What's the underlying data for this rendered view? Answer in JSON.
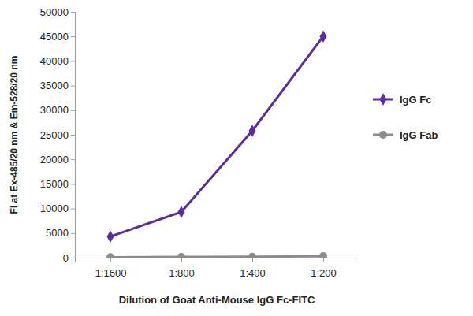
{
  "chart_data": {
    "type": "line",
    "x_label": "Dilution of Goat Anti-Mouse IgG Fc-FITC",
    "y_label": "FI at Ex-485/20 nm & Em-528/20 nm",
    "categories": [
      "1:1600",
      "1:800",
      "1:400",
      "1:200"
    ],
    "series": [
      {
        "name": "IgG Fc",
        "color": "#5b2c9f",
        "marker": "diamond",
        "values": [
          4300,
          9300,
          25800,
          45000
        ]
      },
      {
        "name": "IgG Fab",
        "color": "#8c8c8c",
        "marker": "circle",
        "values": [
          100,
          150,
          200,
          300
        ]
      }
    ],
    "ylim": [
      0,
      50000
    ],
    "yticks": [
      0,
      5000,
      10000,
      15000,
      20000,
      25000,
      30000,
      35000,
      40000,
      45000,
      50000
    ],
    "grid": false,
    "legend": "right"
  }
}
